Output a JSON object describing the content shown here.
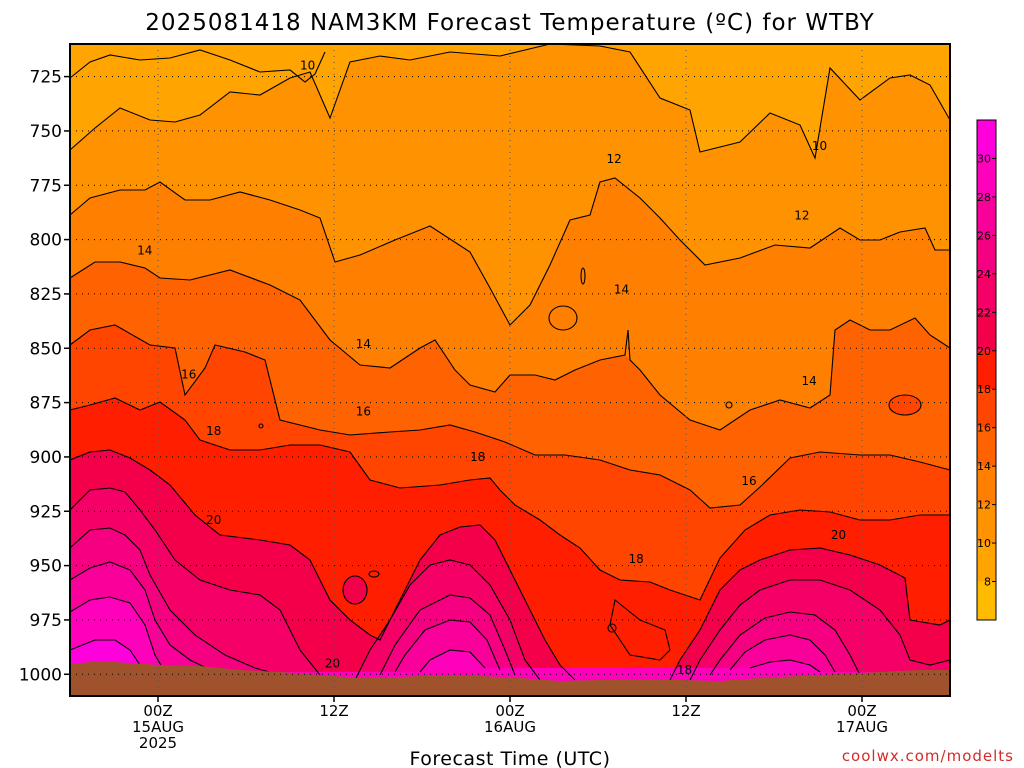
{
  "chart_data": {
    "type": "heatmap",
    "title": "2025081418 NAM3KM Forecast Temperature (ºC) for WTBY",
    "xlabel": "Forecast Time (UTC)",
    "credit": "coolwx.com/modelts",
    "y_axis": {
      "ticks": [
        725,
        750,
        775,
        800,
        825,
        850,
        875,
        900,
        925,
        950,
        975,
        1000
      ],
      "range": [
        1010,
        710
      ],
      "reversed": true,
      "grid": "dotted"
    },
    "x_axis": {
      "ticks": [
        {
          "hour": 6,
          "lines": [
            "00Z",
            "15AUG",
            "2025"
          ]
        },
        {
          "hour": 18,
          "lines": [
            "12Z"
          ]
        },
        {
          "hour": 30,
          "lines": [
            "00Z",
            "16AUG"
          ]
        },
        {
          "hour": 42,
          "lines": [
            "12Z"
          ]
        },
        {
          "hour": 54,
          "lines": [
            "00Z",
            "17AUG"
          ]
        }
      ],
      "range": [
        0,
        60
      ],
      "grid": "dotted"
    },
    "colorbar": {
      "levels": [
        6,
        8,
        10,
        12,
        14,
        16,
        18,
        20,
        22,
        24,
        26,
        28,
        30,
        32
      ],
      "labels": [
        8,
        10,
        12,
        14,
        16,
        18,
        20,
        22,
        24,
        26,
        28,
        30
      ],
      "colors": [
        "#ffbb00",
        "#ffa400",
        "#ff9200",
        "#ff7f00",
        "#ff6200",
        "#ff4500",
        "#ff1f00",
        "#f4004a",
        "#f40066",
        "#f40080",
        "#f80099",
        "#ff00bb",
        "#ff00dd"
      ]
    },
    "contour_labels": [
      {
        "text": "10",
        "hour": 16.2,
        "pres": 720
      },
      {
        "text": "10",
        "hour": 51.1,
        "pres": 757
      },
      {
        "text": "12",
        "hour": 37.1,
        "pres": 763
      },
      {
        "text": "12",
        "hour": 49.9,
        "pres": 789
      },
      {
        "text": "14",
        "hour": 5.1,
        "pres": 805
      },
      {
        "text": "14",
        "hour": 37.6,
        "pres": 823
      },
      {
        "text": "14",
        "hour": 20.0,
        "pres": 848
      },
      {
        "text": "14",
        "hour": 50.4,
        "pres": 865
      },
      {
        "text": "16",
        "hour": 8.1,
        "pres": 862
      },
      {
        "text": "16",
        "hour": 20.0,
        "pres": 879
      },
      {
        "text": "16",
        "hour": 46.3,
        "pres": 911
      },
      {
        "text": "18",
        "hour": 9.8,
        "pres": 888
      },
      {
        "text": "18",
        "hour": 27.8,
        "pres": 900
      },
      {
        "text": "18",
        "hour": 38.6,
        "pres": 947
      },
      {
        "text": "18",
        "hour": 41.9,
        "pres": 998
      },
      {
        "text": "20",
        "hour": 9.8,
        "pres": 929
      },
      {
        "text": "20",
        "hour": 52.4,
        "pres": 936
      },
      {
        "text": "20",
        "hour": 17.9,
        "pres": 995
      }
    ]
  }
}
